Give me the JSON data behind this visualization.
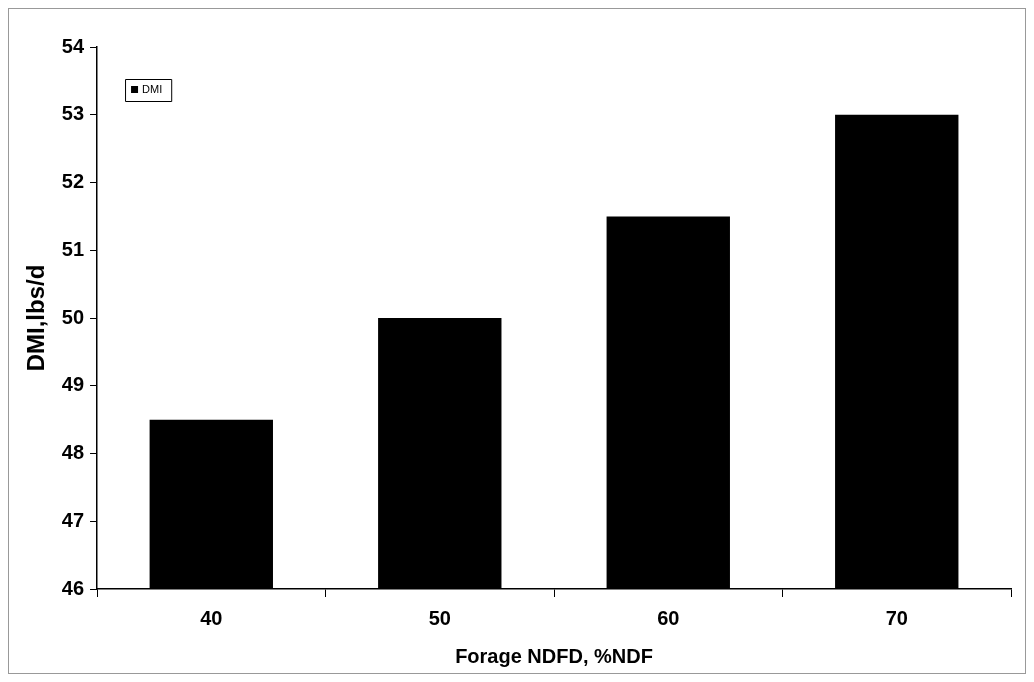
{
  "chart_data": {
    "type": "bar",
    "xlabel": "Forage NDFD, %NDF",
    "ylabel": "DMI,lbs/d",
    "categories": [
      "40",
      "50",
      "60",
      "70"
    ],
    "series": [
      {
        "name": "DMI",
        "color": "#000000",
        "values": [
          48.5,
          50,
          51.5,
          53
        ]
      }
    ],
    "ylim": [
      46,
      54
    ],
    "yticks": [
      46,
      47,
      48,
      49,
      50,
      51,
      52,
      53,
      54
    ],
    "grid": false,
    "legend": "top left"
  }
}
